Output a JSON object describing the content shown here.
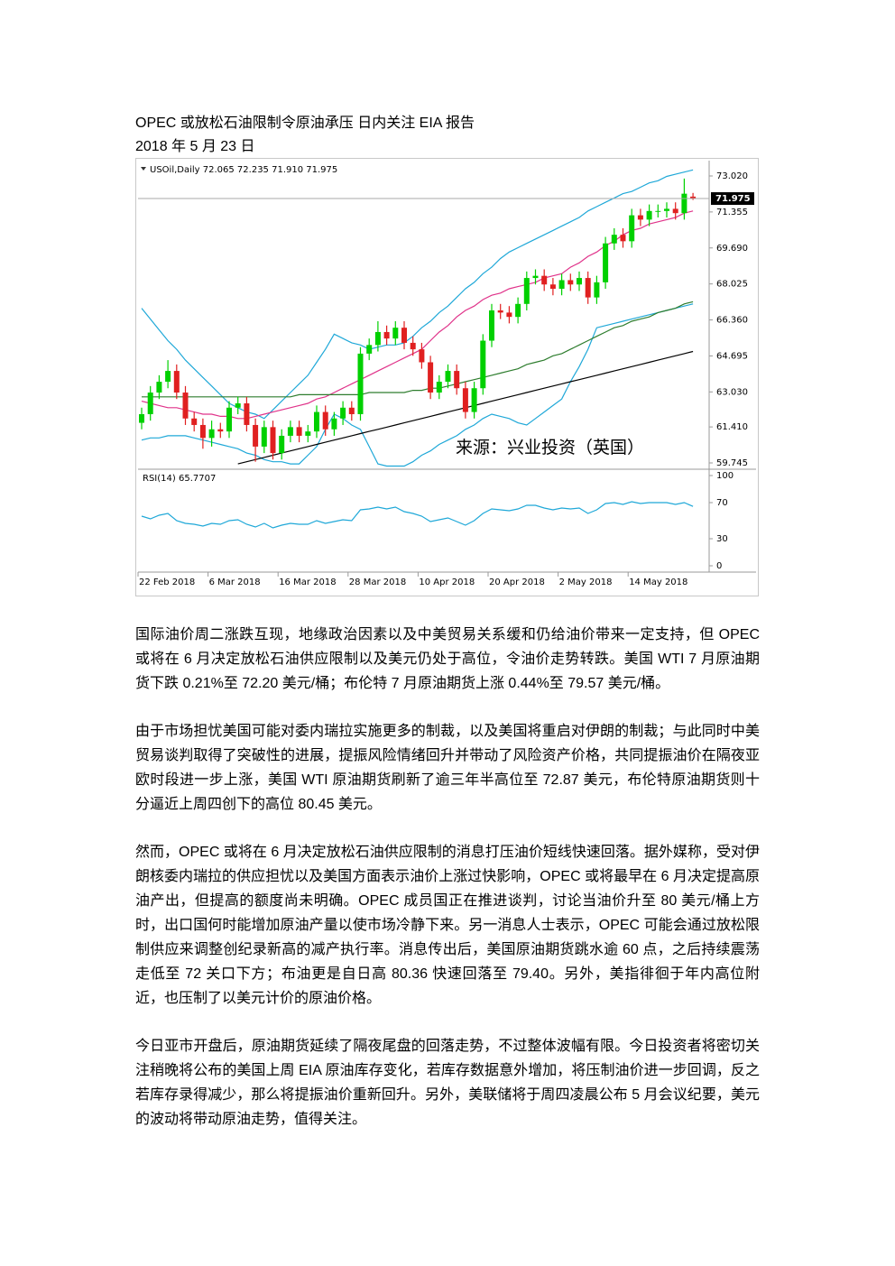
{
  "header": {
    "title": "OPEC 或放松石油限制令原油承压  日内关注 EIA 报告",
    "date": "2018 年 5 月 23 日"
  },
  "chart_data": {
    "type": "candlestick",
    "info": "USOil,Daily  72.065 72.235 71.910 71.975",
    "annotation": "来源：兴业投资（英国）",
    "up_color": "#00d000",
    "down_color": "#e02020",
    "ylim": [
      59.745,
      73.02
    ],
    "yticks": [
      {
        "value": 73.02,
        "label": "73.020"
      },
      {
        "value": 71.355,
        "label": "71.355"
      },
      {
        "value": 69.69,
        "label": "69.690"
      },
      {
        "value": 68.025,
        "label": "68.025"
      },
      {
        "value": 66.36,
        "label": "66.360"
      },
      {
        "value": 64.695,
        "label": "64.695"
      },
      {
        "value": 63.03,
        "label": "63.030"
      },
      {
        "value": 61.41,
        "label": "61.410"
      },
      {
        "value": 59.745,
        "label": "59.745"
      }
    ],
    "categories": [
      "22 Feb 2018",
      null,
      null,
      null,
      null,
      null,
      null,
      null,
      "6 Mar 2018",
      null,
      null,
      null,
      null,
      null,
      null,
      null,
      "16 Mar 2018",
      null,
      null,
      null,
      null,
      null,
      null,
      null,
      "28 Mar 2018",
      null,
      null,
      null,
      null,
      null,
      null,
      null,
      "10 Apr 2018",
      null,
      null,
      null,
      null,
      null,
      null,
      null,
      "20 Apr 2018",
      null,
      null,
      null,
      null,
      null,
      null,
      null,
      "2 May 2018",
      null,
      null,
      null,
      null,
      null,
      null,
      null,
      "14 May 2018",
      null,
      null,
      null,
      null,
      null,
      null,
      null
    ],
    "candles": [
      [
        61.6,
        62.3,
        61.3,
        62.0
      ],
      [
        62.0,
        63.3,
        61.7,
        63.0
      ],
      [
        63.0,
        63.8,
        62.7,
        63.5
      ],
      [
        63.5,
        64.5,
        63.2,
        64.0
      ],
      [
        64.0,
        64.3,
        62.7,
        63.0
      ],
      [
        63.0,
        63.3,
        61.5,
        61.8
      ],
      [
        61.8,
        62.1,
        61.2,
        61.5
      ],
      [
        61.5,
        61.8,
        60.4,
        60.9
      ],
      [
        60.9,
        61.7,
        60.5,
        61.3
      ],
      [
        61.3,
        61.6,
        60.9,
        61.2
      ],
      [
        61.2,
        62.6,
        60.9,
        62.3
      ],
      [
        62.3,
        62.8,
        62.0,
        62.5
      ],
      [
        62.5,
        62.8,
        61.2,
        61.5
      ],
      [
        61.5,
        61.8,
        59.8,
        60.5
      ],
      [
        60.5,
        61.7,
        60.2,
        61.4
      ],
      [
        61.4,
        61.7,
        59.9,
        60.2
      ],
      [
        60.2,
        61.3,
        59.9,
        61.0
      ],
      [
        61.0,
        61.7,
        60.7,
        61.4
      ],
      [
        61.4,
        61.7,
        60.7,
        61.0
      ],
      [
        61.0,
        61.5,
        60.7,
        61.2
      ],
      [
        61.2,
        62.4,
        60.9,
        62.1
      ],
      [
        62.1,
        62.4,
        61.0,
        61.3
      ],
      [
        61.3,
        62.1,
        61.0,
        61.8
      ],
      [
        61.8,
        62.6,
        61.5,
        62.3
      ],
      [
        62.3,
        62.6,
        61.7,
        62.0
      ],
      [
        62.0,
        65.1,
        61.7,
        64.8
      ],
      [
        64.8,
        65.5,
        64.5,
        65.2
      ],
      [
        65.2,
        66.3,
        64.9,
        65.8
      ],
      [
        65.8,
        66.1,
        65.2,
        65.5
      ],
      [
        65.5,
        66.3,
        65.2,
        66.0
      ],
      [
        66.0,
        66.3,
        65.0,
        65.3
      ],
      [
        65.3,
        65.6,
        64.7,
        65.0
      ],
      [
        65.0,
        65.3,
        64.1,
        64.4
      ],
      [
        64.4,
        64.7,
        62.7,
        63.0
      ],
      [
        63.0,
        63.8,
        62.7,
        63.5
      ],
      [
        63.5,
        64.3,
        63.2,
        64.0
      ],
      [
        64.0,
        64.3,
        62.9,
        63.2
      ],
      [
        63.2,
        63.5,
        61.8,
        62.1
      ],
      [
        62.1,
        63.5,
        61.8,
        63.2
      ],
      [
        63.2,
        65.7,
        62.9,
        65.4
      ],
      [
        65.4,
        67.1,
        65.1,
        66.8
      ],
      [
        66.8,
        67.1,
        66.4,
        66.7
      ],
      [
        66.7,
        67.0,
        66.2,
        66.5
      ],
      [
        66.5,
        67.4,
        66.2,
        67.1
      ],
      [
        67.1,
        68.6,
        66.8,
        68.3
      ],
      [
        68.3,
        68.7,
        68.0,
        68.4
      ],
      [
        68.4,
        68.7,
        67.7,
        68.0
      ],
      [
        68.0,
        68.3,
        67.5,
        67.8
      ],
      [
        67.8,
        68.5,
        67.5,
        68.2
      ],
      [
        68.2,
        68.5,
        67.7,
        68.0
      ],
      [
        68.0,
        68.6,
        67.7,
        68.3
      ],
      [
        68.3,
        68.6,
        67.1,
        67.4
      ],
      [
        67.4,
        68.4,
        67.1,
        68.1
      ],
      [
        68.1,
        70.2,
        67.8,
        69.9
      ],
      [
        69.9,
        70.6,
        69.6,
        70.3
      ],
      [
        70.3,
        70.6,
        69.7,
        70.0
      ],
      [
        70.0,
        71.5,
        69.7,
        71.2
      ],
      [
        71.2,
        71.5,
        70.7,
        71.0
      ],
      [
        71.0,
        71.7,
        70.7,
        71.4
      ],
      [
        71.4,
        71.7,
        71.1,
        71.4
      ],
      [
        71.4,
        71.8,
        71.1,
        71.5
      ],
      [
        71.5,
        71.8,
        71.0,
        71.3
      ],
      [
        71.3,
        72.9,
        71.0,
        72.2
      ],
      [
        72.065,
        72.235,
        71.91,
        71.975
      ]
    ],
    "overlays": [
      {
        "color": "#1fa8d8",
        "values": [
          66.9,
          66.4,
          65.9,
          65.4,
          65.0,
          64.5,
          64.1,
          63.7,
          63.3,
          62.9,
          62.5,
          62.3,
          62.1,
          62.0,
          61.8,
          62.2,
          62.6,
          63.0,
          63.4,
          63.8,
          64.4,
          65.0,
          65.7,
          65.5,
          65.3,
          65.2,
          65.0,
          65.1,
          65.2,
          65.2,
          65.3,
          65.6,
          66.0,
          66.3,
          66.7,
          67.0,
          67.4,
          67.8,
          68.1,
          68.5,
          68.8,
          69.2,
          69.5,
          69.7,
          69.9,
          70.1,
          70.3,
          70.5,
          70.7,
          70.9,
          71.1,
          71.4,
          71.6,
          71.8,
          72.0,
          72.2,
          72.3,
          72.5,
          72.7,
          72.8,
          73.0,
          73.1,
          73.2,
          73.3
        ]
      },
      {
        "color": "#1fa8d8",
        "values": [
          60.8,
          60.9,
          60.9,
          61.0,
          61.0,
          61.0,
          60.9,
          60.8,
          60.7,
          60.6,
          60.5,
          60.4,
          60.2,
          60.1,
          59.9,
          59.8,
          59.8,
          59.7,
          59.7,
          60.1,
          60.5,
          61.3,
          62.0,
          61.8,
          61.5,
          61.3,
          60.5,
          59.7,
          59.6,
          59.6,
          59.6,
          59.8,
          60.1,
          60.3,
          60.6,
          60.8,
          61.0,
          61.3,
          61.5,
          61.8,
          62.0,
          61.9,
          61.8,
          61.6,
          61.5,
          61.8,
          62.1,
          62.4,
          62.7,
          63.5,
          64.2,
          65.0,
          66.0,
          66.1,
          66.2,
          66.3,
          66.4,
          66.5,
          66.6,
          66.7,
          66.8,
          66.9,
          67.0,
          67.1
        ]
      },
      {
        "color": "#e0338a",
        "values": [
          62.6,
          62.5,
          62.4,
          62.3,
          62.3,
          62.2,
          62.1,
          62.0,
          62.0,
          61.9,
          61.9,
          61.8,
          61.8,
          61.9,
          62.0,
          62.1,
          62.2,
          62.3,
          62.4,
          62.5,
          62.7,
          62.8,
          63.0,
          63.2,
          63.4,
          63.6,
          63.8,
          64.0,
          64.2,
          64.4,
          64.6,
          64.8,
          65.0,
          65.4,
          65.8,
          66.1,
          66.5,
          66.8,
          67.0,
          67.3,
          67.5,
          67.6,
          67.8,
          67.9,
          68.0,
          68.1,
          68.3,
          68.4,
          68.5,
          68.8,
          69.0,
          69.3,
          69.5,
          69.8,
          70.0,
          70.3,
          70.5,
          70.6,
          70.8,
          70.9,
          71.0,
          71.1,
          71.3,
          71.4
        ]
      },
      {
        "color": "#2e7d2e",
        "values": [
          62.8,
          62.8,
          62.8,
          62.8,
          62.8,
          62.8,
          62.8,
          62.8,
          62.8,
          62.8,
          62.8,
          62.8,
          62.8,
          62.8,
          62.8,
          62.8,
          62.8,
          62.8,
          62.9,
          62.9,
          62.9,
          62.9,
          62.9,
          62.9,
          62.9,
          62.9,
          63.0,
          63.0,
          63.0,
          63.0,
          63.0,
          63.1,
          63.1,
          63.2,
          63.2,
          63.3,
          63.4,
          63.5,
          63.6,
          63.7,
          63.8,
          63.9,
          64.0,
          64.1,
          64.3,
          64.4,
          64.5,
          64.7,
          64.8,
          65.0,
          65.2,
          65.4,
          65.6,
          65.8,
          66.0,
          66.1,
          66.3,
          66.4,
          66.5,
          66.7,
          66.8,
          66.9,
          67.1,
          67.2
        ]
      },
      {
        "color": "#000000",
        "values": [
          null,
          null,
          null,
          null,
          null,
          null,
          null,
          null,
          null,
          null,
          null,
          59.7,
          59.8,
          59.9,
          60.0,
          60.1,
          60.2,
          60.3,
          60.4,
          60.5,
          60.6,
          60.7,
          60.8,
          60.9,
          61.0,
          61.1,
          61.2,
          61.3,
          61.4,
          61.5,
          61.6,
          61.7,
          61.8,
          61.9,
          62.0,
          62.1,
          62.2,
          62.3,
          62.4,
          62.5,
          62.6,
          62.7,
          62.8,
          62.9,
          63.0,
          63.1,
          63.2,
          63.3,
          63.4,
          63.5,
          63.6,
          63.7,
          63.8,
          63.9,
          64.0,
          64.1,
          64.2,
          64.3,
          64.4,
          64.5,
          64.6,
          64.7,
          64.8,
          64.9
        ]
      }
    ],
    "rsi": {
      "label": "RSI(14)",
      "color": "#1fa8d8",
      "ylim": [
        0,
        100
      ],
      "yticks": [
        100,
        70,
        30,
        0
      ],
      "values": [
        55,
        52,
        56,
        58,
        50,
        47,
        46,
        44,
        47,
        46,
        50,
        51,
        46,
        43,
        47,
        42,
        45,
        47,
        46,
        46,
        50,
        47,
        49,
        51,
        50,
        62,
        63,
        65,
        63,
        65,
        60,
        58,
        55,
        49,
        51,
        53,
        49,
        45,
        50,
        58,
        63,
        62,
        61,
        63,
        67,
        67,
        64,
        62,
        64,
        63,
        64,
        58,
        62,
        69,
        70,
        68,
        71,
        69,
        70,
        70,
        70,
        68,
        70,
        65.7707
      ]
    }
  },
  "paragraphs": [
    "国际油价周二涨跌互现，地缘政治因素以及中美贸易关系缓和仍给油价带来一定支持，但 OPEC 或将在 6 月决定放松石油供应限制以及美元仍处于高位，令油价走势转跌。美国 WTI 7 月原油期货下跌 0.21%至 72.20 美元/桶；布伦特 7 月原油期货上涨 0.44%至 79.57 美元/桶。",
    "由于市场担忧美国可能对委内瑞拉实施更多的制裁，以及美国将重启对伊朗的制裁；与此同时中美贸易谈判取得了突破性的进展，提振风险情绪回升并带动了风险资产价格，共同提振油价在隔夜亚欧时段进一步上涨，美国 WTI 原油期货刷新了逾三年半高位至 72.87 美元，布伦特原油期货则十分逼近上周四创下的高位 80.45 美元。",
    "然而，OPEC 或将在 6 月决定放松石油供应限制的消息打压油价短线快速回落。据外媒称，受对伊朗核委内瑞拉的供应担忧以及美国方面表示油价上涨过快影响，OPEC 或将最早在 6 月决定提高原油产出，但提高的额度尚未明确。OPEC 成员国正在推进谈判，讨论当油价升至 80 美元/桶上方时，出口国何时能增加原油产量以使市场冷静下来。另一消息人士表示，OPEC 可能会通过放松限制供应来调整创纪录新高的减产执行率。消息传出后，美国原油期货跳水逾 60 点，之后持续震荡走低至 72 关口下方；布油更是自日高 80.36 快速回落至 79.40。另外，美指徘徊于年内高位附近，也压制了以美元计价的原油价格。",
    "今日亚市开盘后，原油期货延续了隔夜尾盘的回落走势，不过整体波幅有限。今日投资者将密切关注稍晚将公布的美国上周 EIA 原油库存变化，若库存数据意外增加，将压制油价进一步回调，反之若库存录得减少，那么将提振油价重新回升。另外，美联储将于周四凌晨公布 5 月会议纪要，美元的波动将带动原油走势，值得关注。"
  ]
}
